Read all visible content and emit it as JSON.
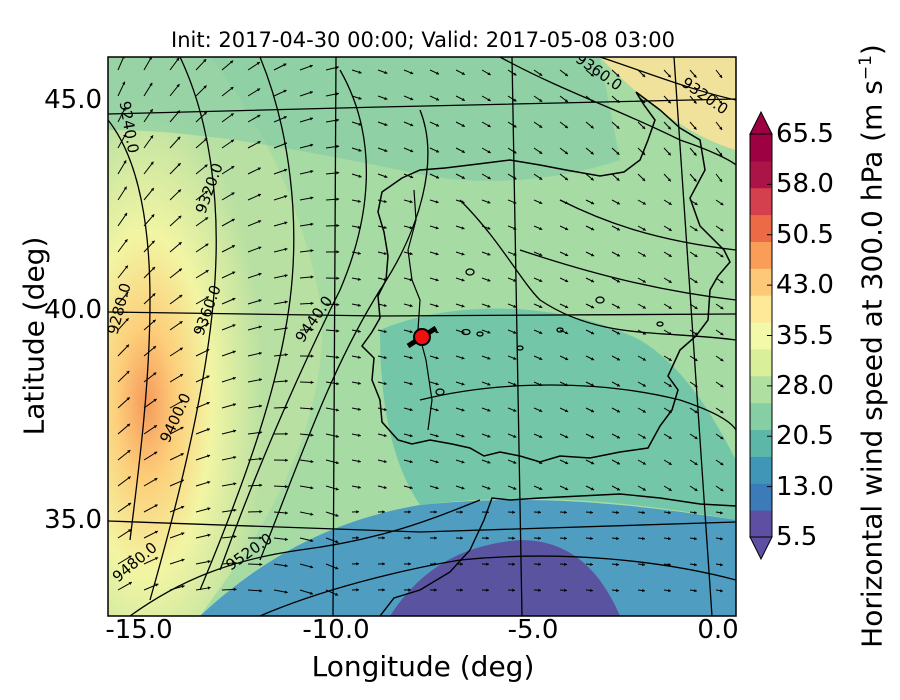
{
  "title": "Init: 2017-04-30 00:00; Valid: 2017-05-08 03:00",
  "xlabel": "Longitude (deg)",
  "ylabel": "Latitude (deg)",
  "colorbar": {
    "label": "Horizontal wind speed at 300.0 hPa (m s",
    "label_sup": "−1",
    "label_end": ")",
    "ticks": [
      "65.5",
      "58.0",
      "50.5",
      "43.0",
      "35.5",
      "28.0",
      "20.5",
      "13.0",
      "5.5"
    ],
    "min": 5.5,
    "max": 65.5,
    "colors": [
      "#5e4fa2",
      "#3a7bb8",
      "#3f96b7",
      "#5db7a9",
      "#86cfa5",
      "#b0dfa2",
      "#d9ef9a",
      "#f2f9a8",
      "#fee999",
      "#fdc978",
      "#f99d59",
      "#ec6b46",
      "#d5404e",
      "#ab1446",
      "#9e0142"
    ]
  },
  "axes": {
    "xticks": [
      "-15.0",
      "-10.0",
      "-5.0",
      "0.0"
    ],
    "yticks": [
      "45.0",
      "40.0",
      "35.0"
    ],
    "xlim": [
      -16,
      0.2
    ],
    "ylim": [
      32.6,
      46.1
    ]
  },
  "contours": {
    "variable": "geopotential height (m)",
    "labels": [
      {
        "text": "9240.0"
      },
      {
        "text": "9320.0"
      },
      {
        "text": "9280.0"
      },
      {
        "text": "9360.0"
      },
      {
        "text": "9440.0"
      },
      {
        "text": "9400.0"
      },
      {
        "text": "9480.0"
      },
      {
        "text": "9520.0"
      },
      {
        "text": "9360.0"
      },
      {
        "text": "9320.0"
      }
    ]
  },
  "marker": {
    "lon": -7.6,
    "lat": 39.3,
    "color": "#ee1111"
  }
}
